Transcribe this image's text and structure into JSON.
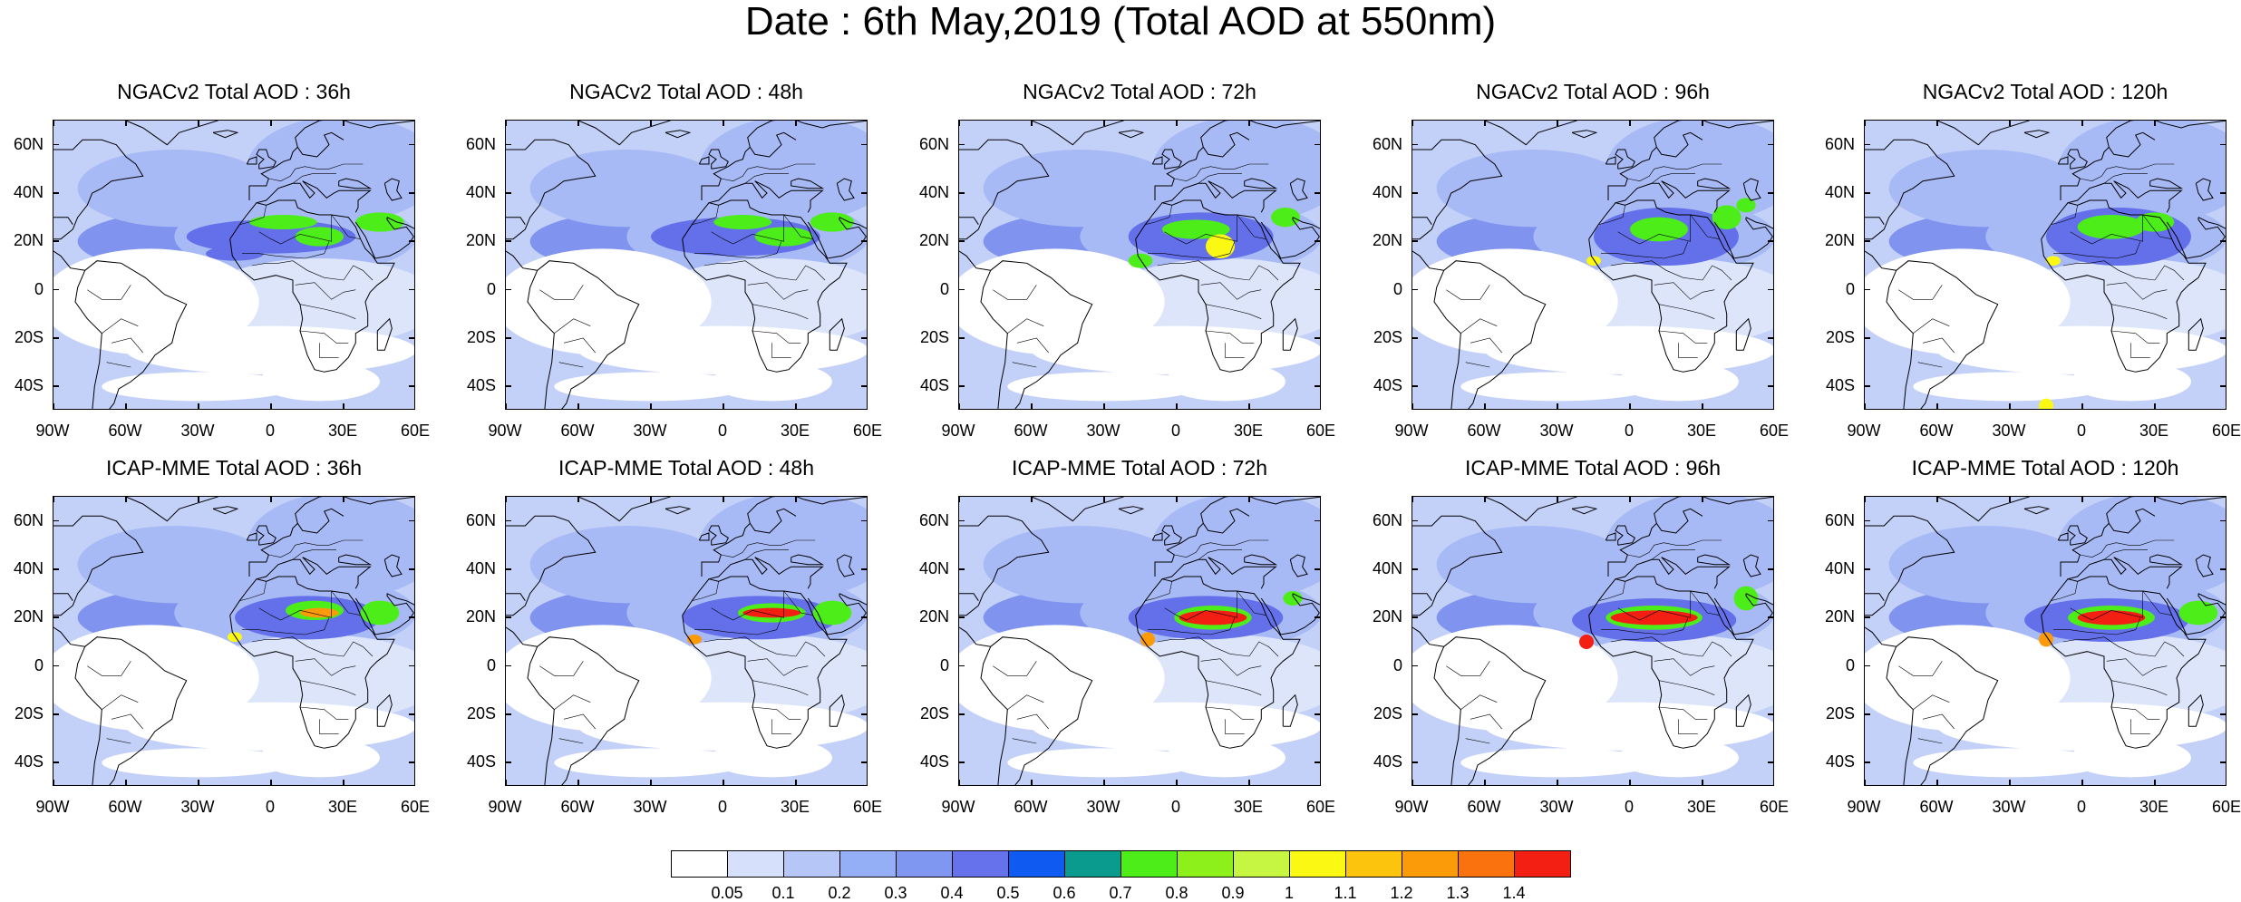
{
  "title": "Date : 6th May,2019 (Total AOD at 550nm)",
  "lat_ticks": [
    "60N",
    "40N",
    "20N",
    "0",
    "20S",
    "40S"
  ],
  "lon_ticks": [
    "90W",
    "60W",
    "30W",
    "0",
    "30E",
    "60E"
  ],
  "panels": [
    {
      "title": "NGACv2 Total AOD : 36h",
      "model": "NGACv2",
      "lead": 36
    },
    {
      "title": "NGACv2 Total AOD : 48h",
      "model": "NGACv2",
      "lead": 48
    },
    {
      "title": "NGACv2 Total AOD : 72h",
      "model": "NGACv2",
      "lead": 72
    },
    {
      "title": "NGACv2 Total AOD : 96h",
      "model": "NGACv2",
      "lead": 96
    },
    {
      "title": "NGACv2 Total AOD : 120h",
      "model": "NGACv2",
      "lead": 120
    },
    {
      "title": "ICAP-MME Total AOD : 36h",
      "model": "ICAP-MME",
      "lead": 36
    },
    {
      "title": "ICAP-MME Total AOD : 48h",
      "model": "ICAP-MME",
      "lead": 48
    },
    {
      "title": "ICAP-MME Total AOD : 72h",
      "model": "ICAP-MME",
      "lead": 72
    },
    {
      "title": "ICAP-MME Total AOD : 96h",
      "model": "ICAP-MME",
      "lead": 96
    },
    {
      "title": "ICAP-MME Total AOD : 120h",
      "model": "ICAP-MME",
      "lead": 120
    }
  ],
  "colorbar": {
    "labels": [
      "0.05",
      "0.1",
      "0.2",
      "0.3",
      "0.4",
      "0.5",
      "0.6",
      "0.7",
      "0.8",
      "0.9",
      "1",
      "1.1",
      "1.2",
      "1.3",
      "1.4"
    ],
    "colors": [
      "#ffffff",
      "#d6e0fb",
      "#b5c6f7",
      "#94aff5",
      "#7f97f0",
      "#6572ec",
      "#0f5af0",
      "#0b9b8e",
      "#4ded1a",
      "#8ef01a",
      "#c6f542",
      "#fbf914",
      "#fcc40c",
      "#fb9b0a",
      "#f9720d",
      "#f41f13"
    ]
  },
  "map_colors": {
    "background": "#c3d0f8",
    "light": "#dde5fb",
    "white": "#ffffff",
    "medium": "#a8baf5",
    "dark": "#7f93ef",
    "deep": "#6470ea",
    "green": "#4ded1a",
    "yellow": "#fbf914",
    "orange": "#fb9b0a",
    "red": "#f41f13",
    "coast": "#000000"
  }
}
